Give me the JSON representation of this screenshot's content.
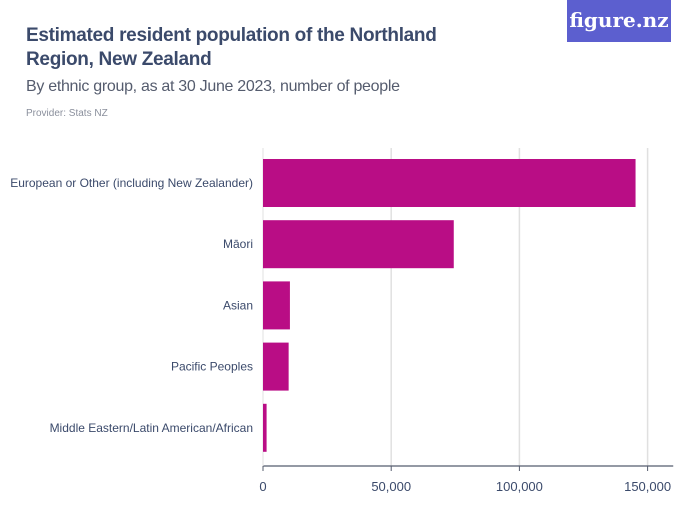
{
  "header": {
    "title": "Estimated resident population of the Northland Region, New Zealand",
    "subtitle": "By ethnic group, as at 30 June 2023, number of people",
    "provider": "Provider: Stats NZ",
    "logo": "figure.nz"
  },
  "colors": {
    "bar": "#b90d85",
    "grid": "#e0e0e0",
    "axis": "#555c6e",
    "logo_bg": "#5c5fcf"
  },
  "chart_data": {
    "type": "bar",
    "orientation": "horizontal",
    "title": "Estimated resident population of the Northland Region, New Zealand",
    "subtitle": "By ethnic group, as at 30 June 2023, number of people",
    "categories": [
      "European or Other (including New Zealander)",
      "Māori",
      "Asian",
      "Pacific Peoples",
      "Middle Eastern/Latin American/African"
    ],
    "values": [
      145300,
      74400,
      10500,
      10000,
      1400
    ],
    "xlim": [
      0,
      160000
    ],
    "xticks": [
      0,
      50000,
      100000,
      150000
    ],
    "xtick_labels": [
      "0",
      "50,000",
      "100,000",
      "150,000"
    ],
    "xlabel": "",
    "ylabel": "",
    "grid": true
  }
}
